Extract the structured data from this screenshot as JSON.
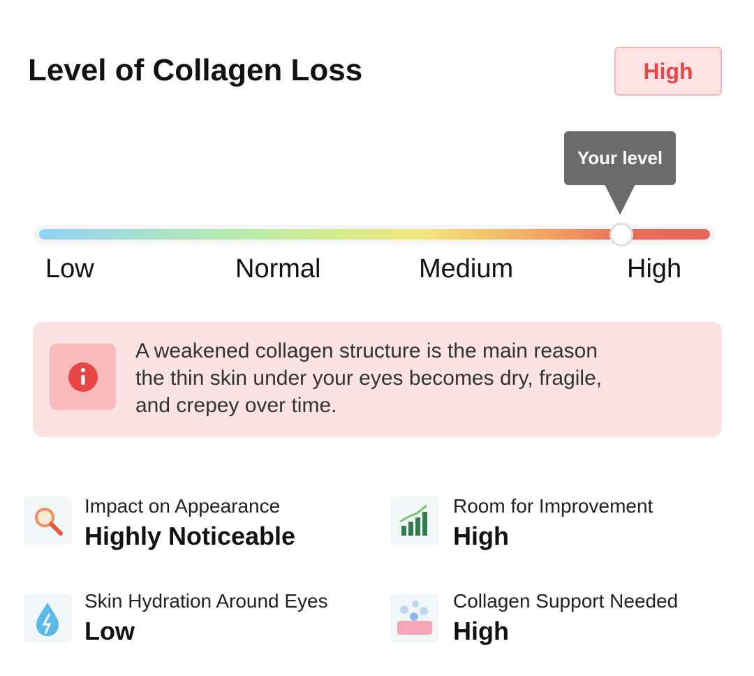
{
  "header": {
    "title": "Level of Collagen Loss",
    "badge": "High"
  },
  "scale": {
    "tooltip": "Your level",
    "labels": [
      "Low",
      "Normal",
      "Medium",
      "High"
    ]
  },
  "info": {
    "lines": [
      "A weakened collagen structure is the main reason",
      "the thin skin under your eyes becomes dry, fragile,",
      "and crepey over time."
    ]
  },
  "stats": [
    {
      "label": "Impact on Appearance",
      "value": "Highly Noticeable"
    },
    {
      "label": "Room for Improvement",
      "value": "High"
    },
    {
      "label": "Skin Hydration Around Eyes",
      "value": "Low"
    },
    {
      "label": "Collagen Support Needed",
      "value": "High"
    }
  ]
}
